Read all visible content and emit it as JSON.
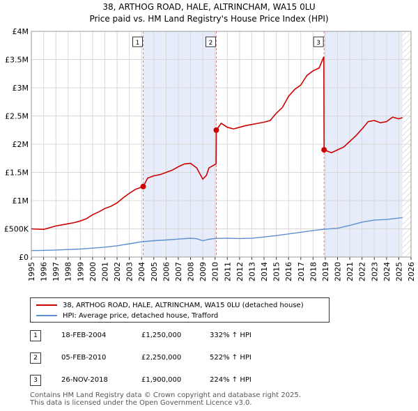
{
  "chart_data": {
    "type": "line",
    "title": "38, ARTHOG ROAD, HALE, ALTRINCHAM, WA15 0LU",
    "subtitle": "Price paid vs. HM Land Registry's House Price Index (HPI)",
    "xlabel": "",
    "ylabel": "",
    "xlim": [
      1995,
      2026
    ],
    "ylim": [
      0,
      4000000
    ],
    "y_ticks": [
      {
        "value": 0,
        "label": "£0"
      },
      {
        "value": 500000,
        "label": "£500K"
      },
      {
        "value": 1000000,
        "label": "£1M"
      },
      {
        "value": 1500000,
        "label": "£1.5M"
      },
      {
        "value": 2000000,
        "label": "£2M"
      },
      {
        "value": 2500000,
        "label": "£2.5M"
      },
      {
        "value": 3000000,
        "label": "£3M"
      },
      {
        "value": 3500000,
        "label": "£3.5M"
      },
      {
        "value": 4000000,
        "label": "£4M"
      }
    ],
    "x_ticks": [
      "1995",
      "1996",
      "1997",
      "1998",
      "1999",
      "2000",
      "2001",
      "2002",
      "2003",
      "2004",
      "2005",
      "2006",
      "2007",
      "2008",
      "2009",
      "2010",
      "2011",
      "2012",
      "2013",
      "2014",
      "2015",
      "2016",
      "2017",
      "2018",
      "2019",
      "2020",
      "2021",
      "2022",
      "2023",
      "2024",
      "2025",
      "2026"
    ],
    "grid": true,
    "shaded_periods": [
      [
        2004.13,
        2010.1
      ],
      [
        2018.9,
        2025.3
      ]
    ],
    "hatched_after": 2025.3,
    "series": [
      {
        "name": "38, ARTHOG ROAD, HALE, ALTRINCHAM, WA15 0LU (detached house)",
        "color": "#cc0000",
        "x": [
          1995.0,
          1996.0,
          1996.5,
          1997.0,
          1997.5,
          1998.0,
          1998.5,
          1999.0,
          1999.5,
          2000.0,
          2000.5,
          2001.0,
          2001.5,
          2002.0,
          2002.5,
          2003.0,
          2003.5,
          2004.13,
          2004.5,
          2005.0,
          2005.5,
          2006.0,
          2006.5,
          2007.0,
          2007.5,
          2008.0,
          2008.5,
          2009.0,
          2009.3,
          2009.5,
          2010.08,
          2010.1,
          2010.5,
          2011.0,
          2011.5,
          2012.0,
          2012.5,
          2013.0,
          2013.5,
          2014.0,
          2014.5,
          2015.0,
          2015.5,
          2016.0,
          2016.5,
          2017.0,
          2017.5,
          2018.0,
          2018.5,
          2018.88,
          2018.9,
          2019.5,
          2020.0,
          2020.5,
          2021.0,
          2021.5,
          2022.0,
          2022.5,
          2023.0,
          2023.5,
          2024.0,
          2024.5,
          2025.0,
          2025.3
        ],
        "values": [
          500000,
          490000,
          520000,
          550000,
          570000,
          590000,
          610000,
          640000,
          680000,
          750000,
          800000,
          860000,
          900000,
          960000,
          1050000,
          1130000,
          1200000,
          1250000,
          1400000,
          1440000,
          1460000,
          1500000,
          1540000,
          1600000,
          1650000,
          1660000,
          1580000,
          1380000,
          1450000,
          1580000,
          1650000,
          2250000,
          2370000,
          2300000,
          2270000,
          2300000,
          2330000,
          2350000,
          2370000,
          2390000,
          2420000,
          2550000,
          2650000,
          2850000,
          2970000,
          3050000,
          3220000,
          3300000,
          3350000,
          3550000,
          1900000,
          1850000,
          1900000,
          1950000,
          2050000,
          2150000,
          2270000,
          2400000,
          2420000,
          2380000,
          2400000,
          2480000,
          2450000,
          2470000
        ]
      },
      {
        "name": "HPI: Average price, detached house, Trafford",
        "color": "#5b8fd0",
        "x": [
          1995.0,
          1996.0,
          1997.0,
          1998.0,
          1999.0,
          2000.0,
          2001.0,
          2002.0,
          2003.0,
          2004.0,
          2005.0,
          2006.0,
          2007.0,
          2008.0,
          2008.5,
          2009.0,
          2009.5,
          2010.0,
          2011.0,
          2012.0,
          2013.0,
          2014.0,
          2015.0,
          2016.0,
          2017.0,
          2018.0,
          2019.0,
          2020.0,
          2021.0,
          2022.0,
          2023.0,
          2024.0,
          2025.0,
          2025.3
        ],
        "values": [
          115000,
          118000,
          125000,
          133000,
          142000,
          158000,
          175000,
          200000,
          235000,
          270000,
          290000,
          302000,
          318000,
          333000,
          325000,
          290000,
          315000,
          330000,
          335000,
          328000,
          335000,
          355000,
          380000,
          410000,
          440000,
          470000,
          495000,
          510000,
          560000,
          620000,
          655000,
          665000,
          690000,
          700000
        ]
      }
    ],
    "sales": [
      {
        "id": "1",
        "x": 2004.13,
        "value": 1250000
      },
      {
        "id": "2",
        "x": 2010.1,
        "value": 2250000
      },
      {
        "id": "3",
        "x": 2018.9,
        "value": 1900000
      }
    ]
  },
  "legend": {
    "property_label": "38, ARTHOG ROAD, HALE, ALTRINCHAM, WA15 0LU (detached house)",
    "hpi_label": "HPI: Average price, detached house, Trafford",
    "property_color": "#cc0000",
    "hpi_color": "#5b8fd0"
  },
  "sales_table": [
    {
      "id": "1",
      "date": "18-FEB-2004",
      "price": "£1,250,000",
      "hpi": "332% ↑ HPI"
    },
    {
      "id": "2",
      "date": "05-FEB-2010",
      "price": "£2,250,000",
      "hpi": "522% ↑ HPI"
    },
    {
      "id": "3",
      "date": "26-NOV-2018",
      "price": "£1,900,000",
      "hpi": "224% ↑ HPI"
    }
  ],
  "footer": {
    "line1": "Contains HM Land Registry data © Crown copyright and database right 2025.",
    "line2": "This data is licensed under the Open Government Licence v3.0."
  }
}
